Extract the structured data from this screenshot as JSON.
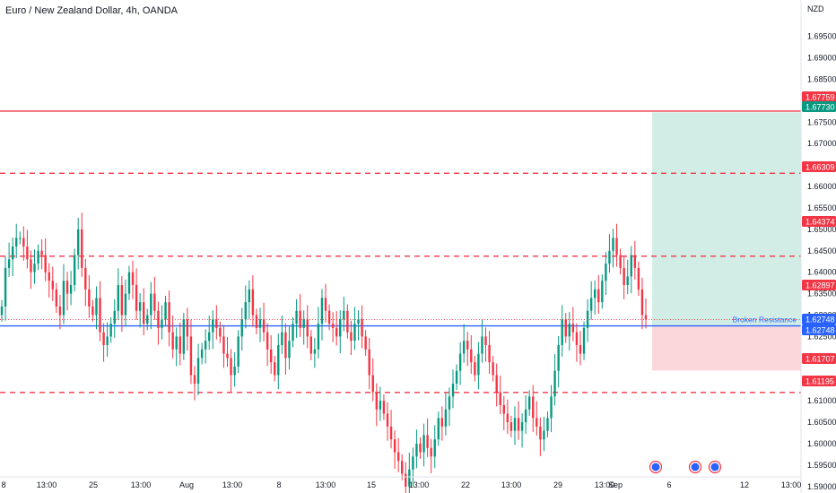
{
  "header": {
    "title": "Euro / New Zealand Dollar, 4h, OANDA"
  },
  "chart_data": {
    "type": "candlestick",
    "currency": "NZD",
    "title": "Euro / New Zealand Dollar, 4h, OANDA",
    "ylim": [
      1.5885,
      1.7035
    ],
    "y_ticks": [
      "1.59000",
      "1.59500",
      "1.60000",
      "1.60500",
      "1.61000",
      "1.61500",
      "1.62000",
      "1.62500",
      "1.63000",
      "1.63500",
      "1.64000",
      "1.64500",
      "1.65000",
      "1.65500",
      "1.66000",
      "1.66500",
      "1.67000",
      "1.67500",
      "1.68000",
      "1.68500",
      "1.69000",
      "1.69500"
    ],
    "x_ticks": [
      "8",
      "13:00",
      "25",
      "13:00",
      "Aug",
      "13:00",
      "8",
      "13:00",
      "15",
      "13:00",
      "22",
      "13:00",
      "29",
      "13:00",
      "Sep",
      "6",
      "12",
      "13:00"
    ],
    "levels": [
      {
        "label": "1.67759",
        "value": 1.67759,
        "color": "#f23645",
        "style": "solid"
      },
      {
        "label": "1.66309",
        "value": 1.66309,
        "color": "#f23645",
        "style": "dashed"
      },
      {
        "label": "1.64374",
        "value": 1.64374,
        "color": "#f23645",
        "style": "dashed"
      },
      {
        "label": "1.62748",
        "value": 1.62748,
        "color": "#2962ff",
        "style": "solid",
        "annotation": "Broken Resistance"
      },
      {
        "label": "1.61195",
        "value": 1.61195,
        "color": "#f23645",
        "style": "dashed"
      }
    ],
    "price_tags": [
      {
        "label": "1.67759",
        "value": 1.67759,
        "color": "#f23645"
      },
      {
        "label": "1.67730",
        "value": 1.6773,
        "color": "#089981"
      },
      {
        "label": "1.66309",
        "value": 1.66309,
        "color": "#f23645"
      },
      {
        "label": "1.64374",
        "value": 1.64374,
        "color": "#f23645"
      },
      {
        "label": "1.62897",
        "value": 1.62897,
        "color": "#f23645"
      },
      {
        "label": "1.62748",
        "value": 1.62748,
        "color": "#2962ff"
      },
      {
        "label": "1.62748",
        "value": 1.62748,
        "color": "#2962ff"
      },
      {
        "label": "1.61707",
        "value": 1.61707,
        "color": "#f23645"
      },
      {
        "label": "1.61195",
        "value": 1.61195,
        "color": "#f23645"
      }
    ],
    "last_price": 1.62897,
    "position": {
      "entry": 1.62748,
      "target": 1.6773,
      "stop": 1.61707
    },
    "series_close": [
      1.632,
      1.641,
      1.643,
      1.646,
      1.648,
      1.648,
      1.646,
      1.643,
      1.64,
      1.642,
      1.645,
      1.644,
      1.64,
      1.638,
      1.636,
      1.632,
      1.63,
      1.638,
      1.635,
      1.637,
      1.644,
      1.65,
      1.641,
      1.636,
      1.632,
      1.63,
      1.634,
      1.626,
      1.623,
      1.625,
      1.628,
      1.631,
      1.637,
      1.63,
      1.635,
      1.64,
      1.637,
      1.631,
      1.633,
      1.628,
      1.63,
      1.635,
      1.631,
      1.627,
      1.629,
      1.633,
      1.626,
      1.622,
      1.625,
      1.621,
      1.629,
      1.625,
      1.616,
      1.614,
      1.62,
      1.622,
      1.624,
      1.626,
      1.629,
      1.627,
      1.625,
      1.621,
      1.62,
      1.616,
      1.618,
      1.625,
      1.629,
      1.633,
      1.636,
      1.63,
      1.627,
      1.629,
      1.626,
      1.622,
      1.619,
      1.616,
      1.623,
      1.626,
      1.62,
      1.624,
      1.628,
      1.631,
      1.627,
      1.629,
      1.625,
      1.621,
      1.622,
      1.628,
      1.634,
      1.631,
      1.628,
      1.627,
      1.625,
      1.629,
      1.631,
      1.626,
      1.624,
      1.628,
      1.629,
      1.625,
      1.622,
      1.616,
      1.612,
      1.608,
      1.61,
      1.607,
      1.604,
      1.601,
      1.598,
      1.596,
      1.593,
      1.59,
      1.594,
      1.597,
      1.6,
      1.598,
      1.602,
      1.599,
      1.597,
      1.601,
      1.606,
      1.604,
      1.608,
      1.611,
      1.614,
      1.617,
      1.621,
      1.624,
      1.622,
      1.619,
      1.616,
      1.621,
      1.625,
      1.623,
      1.619,
      1.616,
      1.612,
      1.609,
      1.607,
      1.605,
      1.603,
      1.606,
      1.603,
      1.605,
      1.608,
      1.611,
      1.606,
      1.604,
      1.601,
      1.603,
      1.606,
      1.611,
      1.617,
      1.623,
      1.629,
      1.625,
      1.628,
      1.626,
      1.623,
      1.621,
      1.627,
      1.631,
      1.634,
      1.636,
      1.633,
      1.638,
      1.642,
      1.645,
      1.648,
      1.644,
      1.641,
      1.637,
      1.639,
      1.644,
      1.641,
      1.636,
      1.63,
      1.629
    ]
  },
  "timeline": {
    "markers": [
      "event-marker",
      "event-marker",
      "event-marker"
    ]
  }
}
